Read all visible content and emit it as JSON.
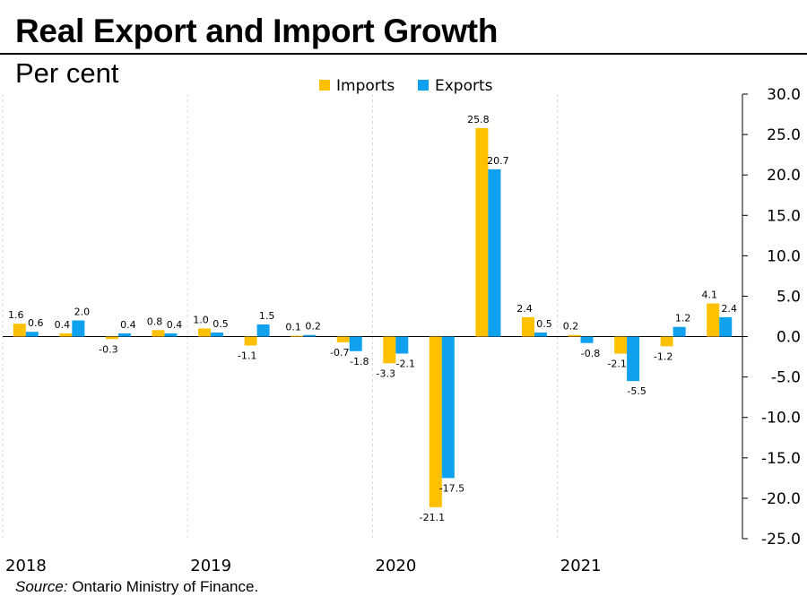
{
  "header": {
    "title": "Real Export and Import Growth",
    "subtitle": "Per cent"
  },
  "footer": {
    "source_lead": "Source:",
    "source_text": " Ontario Ministry of Finance."
  },
  "colors": {
    "imports": "#FFC000",
    "exports": "#0FA1EE",
    "gridline": "#d9d9d9",
    "axis": "#000000"
  },
  "chart_data": {
    "type": "bar",
    "title": "Real Export and Import Growth",
    "ylabel": "Per cent",
    "xlabel": "",
    "ylim": [
      -25,
      30
    ],
    "yticks": [
      "30.0",
      "25.0",
      "20.0",
      "15.0",
      "10.0",
      "5.0",
      "0.0",
      "-5.0",
      "-10.0",
      "-15.0",
      "-20.0",
      "-25.0"
    ],
    "ytick_values": [
      30,
      25,
      20,
      15,
      10,
      5,
      0,
      -5,
      -10,
      -15,
      -20,
      -25
    ],
    "legend_position": "top-center",
    "year_labels": [
      "2018",
      "2019",
      "2020",
      "2021"
    ],
    "categories": [
      "2018 Q1",
      "2018 Q2",
      "2018 Q3",
      "2018 Q4",
      "2019 Q1",
      "2019 Q2",
      "2019 Q3",
      "2019 Q4",
      "2020 Q1",
      "2020 Q2",
      "2020 Q3",
      "2020 Q4",
      "2021 Q1",
      "2021 Q2",
      "2021 Q3",
      "2021 Q4"
    ],
    "series": [
      {
        "name": "Imports",
        "values": [
          1.6,
          0.4,
          -0.3,
          0.8,
          1.0,
          -1.1,
          0.1,
          -0.7,
          -3.3,
          -21.1,
          25.8,
          2.4,
          0.2,
          -2.1,
          -1.2,
          4.1
        ],
        "labels": [
          "1.6",
          "0.4",
          "-0.3",
          "0.8",
          "1.0",
          "-1.1",
          "0.1",
          "-0.7",
          "-3.3",
          "-21.1",
          "25.8",
          "2.4",
          "0.2",
          "-2.1",
          "-1.2",
          "4.1"
        ]
      },
      {
        "name": "Exports",
        "values": [
          0.6,
          2.0,
          0.4,
          0.4,
          0.5,
          1.5,
          0.2,
          -1.8,
          -2.1,
          -17.5,
          20.7,
          0.5,
          -0.8,
          -5.5,
          1.2,
          2.4
        ],
        "labels": [
          "0.6",
          "2.0",
          "0.4",
          "0.4",
          "0.5",
          "1.5",
          "0.2",
          "-1.8",
          "-2.1",
          "-17.5",
          "20.7",
          "0.5",
          "-0.8",
          "-5.5",
          "1.2",
          "2.4"
        ]
      }
    ]
  }
}
